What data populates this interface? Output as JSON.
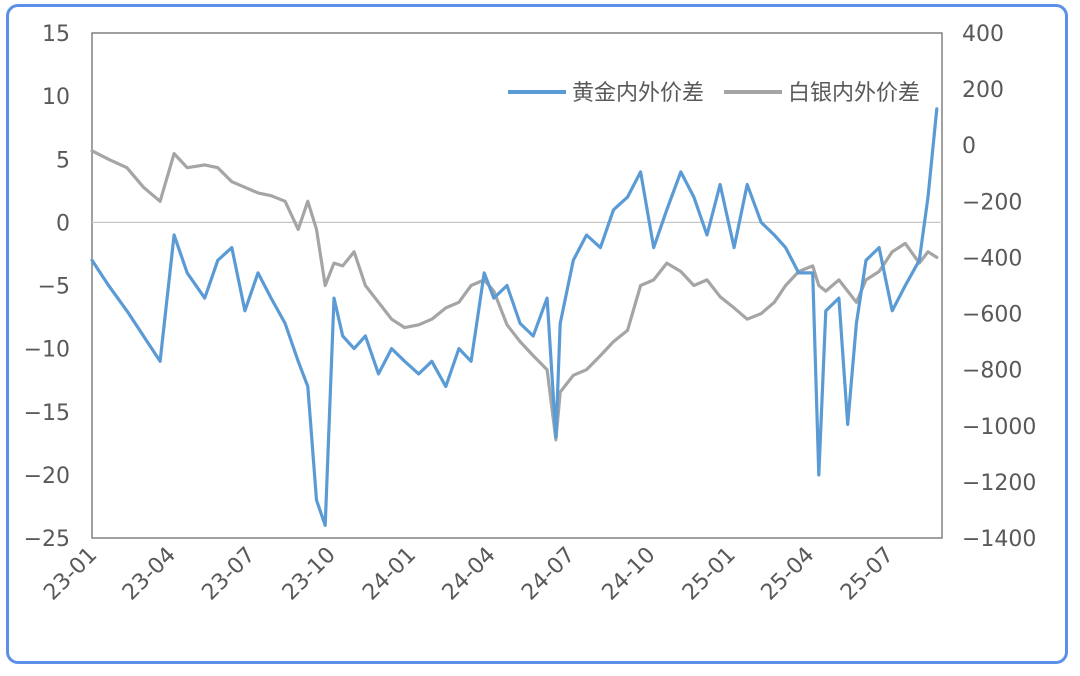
{
  "chart_data": {
    "type": "line",
    "title": "",
    "legend_position": "top-right",
    "grid": false,
    "x_axis": {
      "type": "date",
      "ticks": [
        "23-01",
        "23-04",
        "23-07",
        "23-10",
        "24-01",
        "24-04",
        "24-07",
        "24-10",
        "25-01",
        "25-04",
        "25-07"
      ],
      "range": [
        "2023-01-01",
        "2025-08-31"
      ]
    },
    "y_left": {
      "ticks": [
        15,
        10,
        5,
        0,
        -5,
        -10,
        -15,
        -20,
        -25
      ],
      "range": [
        -25,
        15
      ]
    },
    "y_right": {
      "ticks": [
        400,
        200,
        0,
        -200,
        -400,
        -600,
        -800,
        -1000,
        -1200,
        -1400
      ],
      "range": [
        -1400,
        400
      ]
    },
    "series": [
      {
        "name": "黄金内外价差",
        "axis": "left",
        "color": "#5b9bd5",
        "x": [
          "2023-01-01",
          "2023-01-20",
          "2023-02-10",
          "2023-03-01",
          "2023-03-20",
          "2023-04-05",
          "2023-04-20",
          "2023-05-10",
          "2023-05-25",
          "2023-06-10",
          "2023-06-25",
          "2023-07-10",
          "2023-07-25",
          "2023-08-10",
          "2023-08-25",
          "2023-09-05",
          "2023-09-15",
          "2023-09-25",
          "2023-10-05",
          "2023-10-15",
          "2023-10-28",
          "2023-11-10",
          "2023-11-25",
          "2023-12-10",
          "2023-12-25",
          "2024-01-10",
          "2024-01-25",
          "2024-02-10",
          "2024-02-25",
          "2024-03-10",
          "2024-03-25",
          "2024-04-05",
          "2024-04-20",
          "2024-05-05",
          "2024-05-20",
          "2024-06-05",
          "2024-06-15",
          "2024-06-20",
          "2024-07-05",
          "2024-07-20",
          "2024-08-05",
          "2024-08-20",
          "2024-09-05",
          "2024-09-20",
          "2024-10-05",
          "2024-10-20",
          "2024-11-05",
          "2024-11-20",
          "2024-12-05",
          "2024-12-20",
          "2025-01-05",
          "2025-01-20",
          "2025-02-05",
          "2025-02-20",
          "2025-03-05",
          "2025-03-20",
          "2025-04-05",
          "2025-04-12",
          "2025-04-20",
          "2025-05-05",
          "2025-05-15",
          "2025-05-25",
          "2025-06-05",
          "2025-06-20",
          "2025-07-05",
          "2025-07-20",
          "2025-08-05",
          "2025-08-15",
          "2025-08-25"
        ],
        "values": [
          -3,
          -5,
          -7,
          -9,
          -11,
          -1,
          -4,
          -6,
          -3,
          -2,
          -7,
          -4,
          -6,
          -8,
          -11,
          -13,
          -22,
          -24,
          -6,
          -9,
          -10,
          -9,
          -12,
          -10,
          -11,
          -12,
          -11,
          -13,
          -10,
          -11,
          -4,
          -6,
          -5,
          -8,
          -9,
          -6,
          -17,
          -8,
          -3,
          -1,
          -2,
          1,
          2,
          4,
          -2,
          1,
          4,
          2,
          -1,
          3,
          -2,
          3,
          0,
          -1,
          -2,
          -4,
          -4,
          -20,
          -7,
          -6,
          -16,
          -8,
          -3,
          -2,
          -7,
          -5,
          -3,
          2,
          9
        ]
      },
      {
        "name": "白银内外价差",
        "axis": "right",
        "color": "#a5a5a5",
        "x": [
          "2023-01-01",
          "2023-01-20",
          "2023-02-10",
          "2023-03-01",
          "2023-03-20",
          "2023-04-05",
          "2023-04-20",
          "2023-05-10",
          "2023-05-25",
          "2023-06-10",
          "2023-06-25",
          "2023-07-10",
          "2023-07-25",
          "2023-08-10",
          "2023-08-25",
          "2023-09-05",
          "2023-09-15",
          "2023-09-25",
          "2023-10-05",
          "2023-10-15",
          "2023-10-28",
          "2023-11-10",
          "2023-11-25",
          "2023-12-10",
          "2023-12-25",
          "2024-01-10",
          "2024-01-25",
          "2024-02-10",
          "2024-02-25",
          "2024-03-10",
          "2024-03-25",
          "2024-04-05",
          "2024-04-20",
          "2024-05-05",
          "2024-05-20",
          "2024-06-05",
          "2024-06-15",
          "2024-06-20",
          "2024-07-05",
          "2024-07-20",
          "2024-08-05",
          "2024-08-20",
          "2024-09-05",
          "2024-09-20",
          "2024-10-05",
          "2024-10-20",
          "2024-11-05",
          "2024-11-20",
          "2024-12-05",
          "2024-12-20",
          "2025-01-05",
          "2025-01-20",
          "2025-02-05",
          "2025-02-20",
          "2025-03-05",
          "2025-03-20",
          "2025-04-05",
          "2025-04-12",
          "2025-04-20",
          "2025-05-05",
          "2025-05-15",
          "2025-05-25",
          "2025-06-05",
          "2025-06-20",
          "2025-07-05",
          "2025-07-20",
          "2025-08-05",
          "2025-08-15",
          "2025-08-25"
        ],
        "values": [
          -20,
          -50,
          -80,
          -150,
          -200,
          -30,
          -80,
          -70,
          -80,
          -130,
          -150,
          -170,
          -180,
          -200,
          -300,
          -200,
          -300,
          -500,
          -420,
          -430,
          -380,
          -500,
          -560,
          -620,
          -650,
          -640,
          -620,
          -580,
          -560,
          -500,
          -480,
          -520,
          -640,
          -700,
          -750,
          -800,
          -1050,
          -880,
          -820,
          -800,
          -750,
          -700,
          -660,
          -500,
          -480,
          -420,
          -450,
          -500,
          -480,
          -540,
          -580,
          -620,
          -600,
          -560,
          -500,
          -450,
          -430,
          -500,
          -520,
          -480,
          -520,
          -560,
          -480,
          -450,
          -380,
          -350,
          -420,
          -380,
          -400
        ]
      }
    ]
  }
}
